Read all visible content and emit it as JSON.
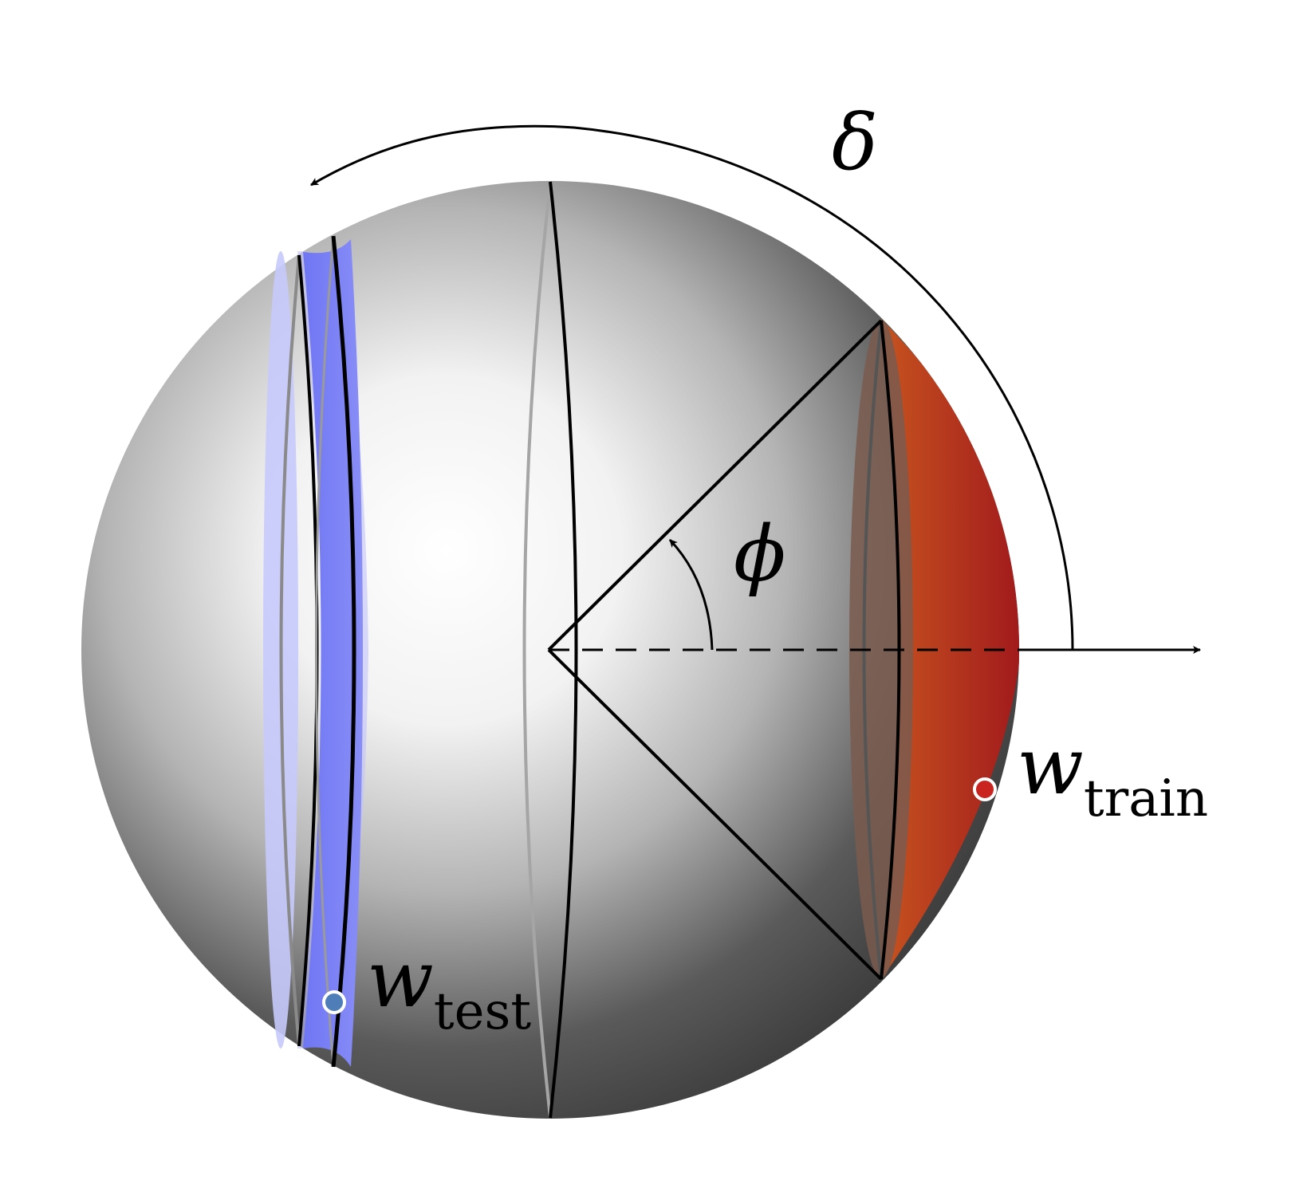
{
  "labels": {
    "delta": "δ",
    "phi": "ϕ",
    "w_test_main": "w",
    "w_test_sub": "test",
    "w_train_main": "w",
    "w_train_sub": "train"
  },
  "colors": {
    "test_band": "#5b63f0",
    "test_band_light": "#c7c9fb",
    "train_cap_light": "#c8551f",
    "train_cap_dark": "#a11a1c",
    "train_ellipse_fill": "#7a5a4f",
    "w_test_point": "#4f7db8",
    "w_train_point": "#c9241f",
    "stroke": "#000000",
    "sphere_light": "#ffffff",
    "sphere_dark": "#3f3f3f"
  }
}
